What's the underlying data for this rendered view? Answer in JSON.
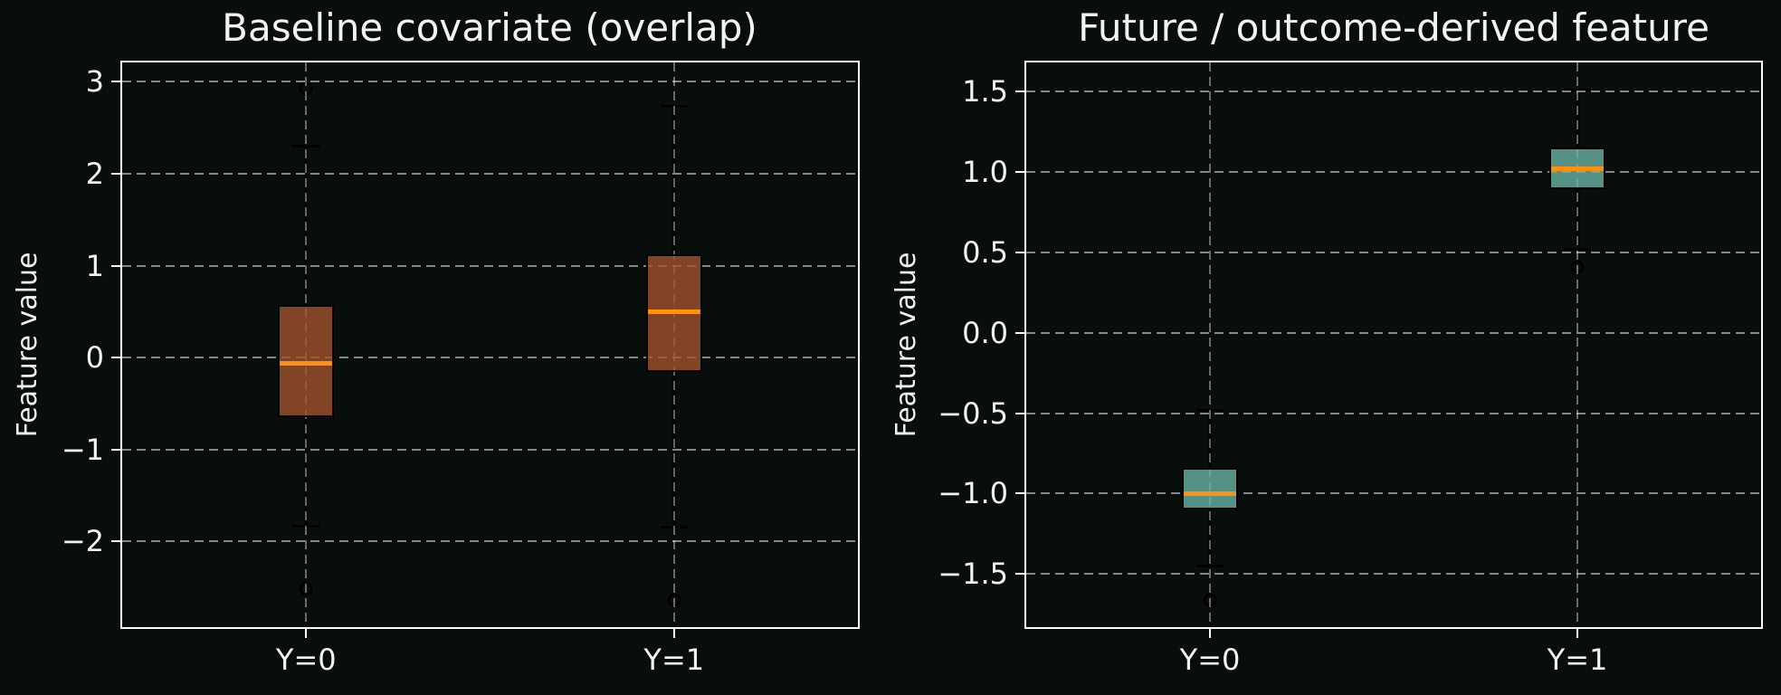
{
  "figure": {
    "background_color": "#070e0c",
    "text_color": "#f2f2f2",
    "spine_color": "#ffffff",
    "grid_color": "rgba(255,255,255,0.5)",
    "median_color": "#ff9010",
    "whisker_color": "#000000"
  },
  "chart_data": [
    {
      "type": "box",
      "title": "Baseline covariate (overlap)",
      "ylabel": "Feature value",
      "categories": [
        "Y=0",
        "Y=1"
      ],
      "ylim": [
        -2.93,
        3.21
      ],
      "yticks": [
        3,
        2,
        1,
        0,
        -1,
        -2
      ],
      "ytick_labels": [
        "3",
        "2",
        "1",
        "0",
        "−1",
        "−2"
      ],
      "grid": true,
      "legend": null,
      "box_fill": "rgba(160,82,45,0.8)",
      "box_edge": "#000000",
      "median_color": "#ff9010",
      "series": [
        {
          "label": "Y=0",
          "whislo": -1.83,
          "q1": -0.65,
          "med": -0.06,
          "q3": 0.57,
          "whishi": 2.3,
          "fliers": [
            2.92,
            -2.52
          ]
        },
        {
          "label": "Y=1",
          "whislo": -1.84,
          "q1": -0.16,
          "med": 0.5,
          "q3": 1.12,
          "whishi": 2.74,
          "fliers": [
            -2.63
          ]
        }
      ]
    },
    {
      "type": "box",
      "title": "Future / outcome-derived feature",
      "ylabel": "Feature value",
      "categories": [
        "Y=0",
        "Y=1"
      ],
      "ylim": [
        -1.83,
        1.68
      ],
      "yticks": [
        1.5,
        1.0,
        0.5,
        0.0,
        -0.5,
        -1.0,
        -1.5
      ],
      "ytick_labels": [
        "1.5",
        "1.0",
        "0.5",
        "0.0",
        "−0.5",
        "−1.0",
        "−1.5"
      ],
      "grid": true,
      "legend": null,
      "box_fill": "rgba(105,179,162,0.8)",
      "box_edge": "#000000",
      "median_color": "#ff9010",
      "series": [
        {
          "label": "Y=0",
          "whislo": -1.45,
          "q1": -1.1,
          "med": -1.0,
          "q3": -0.84,
          "whishi": -0.48,
          "fliers": [
            -1.66
          ]
        },
        {
          "label": "Y=1",
          "whislo": 0.52,
          "q1": 0.89,
          "med": 1.02,
          "q3": 1.15,
          "whishi": 1.51,
          "fliers": [
            0.41
          ]
        }
      ]
    }
  ]
}
